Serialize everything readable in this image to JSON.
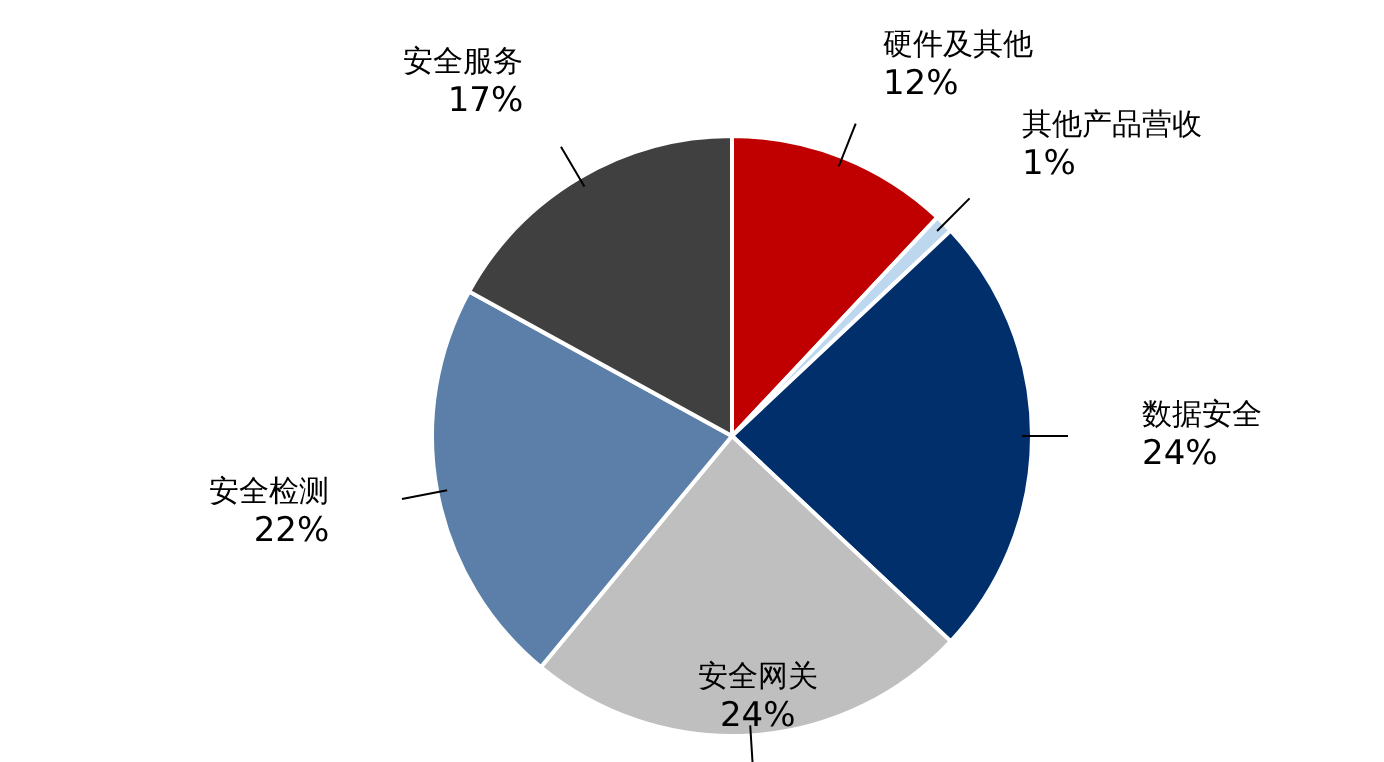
{
  "chart_data": {
    "type": "pie",
    "categories": [
      "硬件及其他",
      "其他产品营收",
      "数据安全",
      "安全网关",
      "安全检测",
      "安全服务"
    ],
    "values": [
      12,
      1,
      24,
      24,
      22,
      17
    ],
    "colors": [
      "#c00000",
      "#bdd7ee",
      "#002f6c",
      "#bfbfbf",
      "#5b7fa8",
      "#404040"
    ],
    "value_labels": [
      "12%",
      "1%",
      "24%",
      "24%",
      "22%",
      "17%"
    ]
  }
}
